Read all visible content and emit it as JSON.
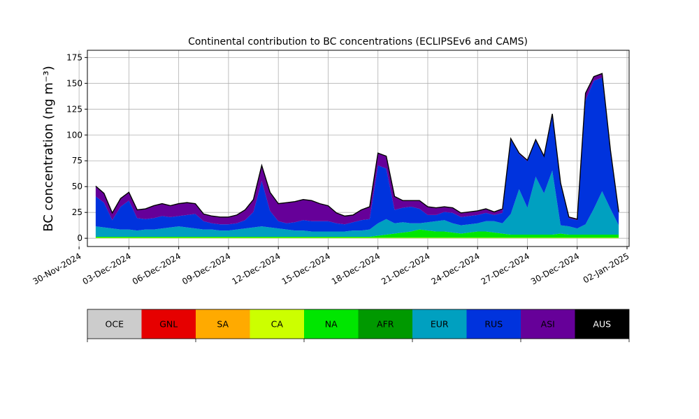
{
  "chart_data": {
    "type": "area",
    "stacked": true,
    "title": "Continental contribution to BC concentrations (ECLIPSEv6 and CAMS)",
    "xlabel": "",
    "ylabel": "BC concentration (ng m⁻³)",
    "xlim": [
      "2024-11-30T12:00",
      "2025-01-02T03:00"
    ],
    "ylim": [
      -8,
      182
    ],
    "grid": true,
    "total_line_color": "#000000",
    "x_ticks": [
      "2024-11-30",
      "2024-12-03",
      "2024-12-06",
      "2024-12-09",
      "2024-12-12",
      "2024-12-15",
      "2024-12-18",
      "2024-12-21",
      "2024-12-24",
      "2024-12-27",
      "2024-12-30",
      "2025-01-02"
    ],
    "x_tick_labels": [
      "30-Nov-2024",
      "03-Dec-2024",
      "06-Dec-2024",
      "09-Dec-2024",
      "12-Dec-2024",
      "15-Dec-2024",
      "18-Dec-2024",
      "21-Dec-2024",
      "24-Dec-2024",
      "27-Dec-2024",
      "30-Dec-2024",
      "02-Jan-2025"
    ],
    "y_ticks": [
      0,
      25,
      50,
      75,
      100,
      125,
      150,
      175
    ],
    "y_tick_labels": [
      "0",
      "25",
      "50",
      "75",
      "100",
      "125",
      "150",
      "175"
    ],
    "x": [
      "2024-12-01",
      "2024-12-01T12:00",
      "2024-12-02",
      "2024-12-02T12:00",
      "2024-12-03",
      "2024-12-03T12:00",
      "2024-12-04",
      "2024-12-04T12:00",
      "2024-12-05",
      "2024-12-05T12:00",
      "2024-12-06",
      "2024-12-06T12:00",
      "2024-12-07",
      "2024-12-07T12:00",
      "2024-12-08",
      "2024-12-08T12:00",
      "2024-12-09",
      "2024-12-09T12:00",
      "2024-12-10",
      "2024-12-10T12:00",
      "2024-12-11",
      "2024-12-11T12:00",
      "2024-12-12",
      "2024-12-12T12:00",
      "2024-12-13",
      "2024-12-13T12:00",
      "2024-12-14",
      "2024-12-14T12:00",
      "2024-12-15",
      "2024-12-15T12:00",
      "2024-12-16",
      "2024-12-16T12:00",
      "2024-12-17",
      "2024-12-17T12:00",
      "2024-12-18",
      "2024-12-18T12:00",
      "2024-12-19",
      "2024-12-19T12:00",
      "2024-12-20",
      "2024-12-20T12:00",
      "2024-12-21",
      "2024-12-21T12:00",
      "2024-12-22",
      "2024-12-22T12:00",
      "2024-12-23",
      "2024-12-23T12:00",
      "2024-12-24",
      "2024-12-24T12:00",
      "2024-12-25",
      "2024-12-25T12:00",
      "2024-12-26",
      "2024-12-26T12:00",
      "2024-12-27",
      "2024-12-27T12:00",
      "2024-12-28",
      "2024-12-28T12:00",
      "2024-12-29",
      "2024-12-29T12:00",
      "2024-12-30",
      "2024-12-30T12:00",
      "2024-12-31",
      "2024-12-31T12:00",
      "2025-01-01",
      "2025-01-01T12:00"
    ],
    "series": [
      {
        "name": "OCE",
        "color": "#cccccc",
        "values": [
          0,
          0,
          0,
          0,
          0,
          0,
          0,
          0,
          0,
          0,
          0,
          0,
          0,
          0,
          0,
          0,
          0,
          0,
          0,
          0,
          0,
          0,
          0,
          0,
          0,
          0,
          0,
          0,
          0,
          0,
          0,
          0,
          0,
          0,
          0,
          0,
          0,
          0,
          0,
          0,
          0,
          0,
          0,
          0,
          0,
          0,
          0,
          0,
          0,
          0,
          0,
          0,
          0,
          0,
          0,
          0,
          0,
          0,
          0,
          0,
          0,
          0,
          0,
          0
        ]
      },
      {
        "name": "GNL",
        "color": "#e60000",
        "values": [
          0,
          0,
          0,
          0,
          0,
          0,
          0,
          0,
          0,
          0,
          0,
          0,
          0,
          0,
          0,
          0,
          0,
          0,
          0,
          0,
          0,
          0,
          0,
          0,
          0,
          0,
          0,
          0,
          0,
          0,
          0,
          0,
          0,
          0,
          0,
          0,
          0,
          0,
          0,
          0,
          0,
          0,
          0,
          0,
          0,
          0,
          0,
          0,
          0,
          0,
          0,
          0,
          0,
          0,
          0,
          0,
          0,
          0,
          0,
          0,
          0,
          0,
          0,
          0
        ]
      },
      {
        "name": "SA",
        "color": "#ffaa00",
        "values": [
          0,
          0,
          0,
          0,
          0,
          0,
          0,
          0,
          0,
          0,
          0,
          0,
          0,
          0,
          0,
          0,
          0,
          0,
          0,
          0,
          0,
          0,
          0,
          0,
          0,
          0,
          0,
          0,
          0,
          0,
          0,
          0,
          0,
          0,
          0,
          0,
          0,
          0,
          0,
          0,
          0,
          0,
          0,
          0,
          0,
          0,
          0,
          0,
          0,
          0,
          0,
          0,
          0,
          0,
          0,
          0,
          0,
          0,
          0,
          0,
          0,
          0,
          0,
          0
        ]
      },
      {
        "name": "CA",
        "color": "#ccff00",
        "values": [
          0.5,
          0.5,
          0.5,
          0.5,
          0.5,
          0.5,
          0.5,
          0.5,
          0.5,
          0.5,
          0.5,
          0.5,
          0.5,
          0.5,
          0.5,
          0.5,
          0.5,
          0.5,
          0.5,
          0.5,
          0.5,
          0.5,
          0.5,
          0.5,
          0.5,
          0.5,
          0.5,
          0.5,
          0.5,
          0.5,
          0.5,
          0.5,
          0.5,
          0.5,
          0.5,
          0.5,
          0.5,
          0.5,
          0.5,
          0.5,
          0.5,
          0.5,
          0.5,
          0.5,
          0.5,
          0.5,
          0.5,
          0.5,
          0.5,
          0.5,
          0.5,
          0.5,
          0.5,
          0.5,
          0.5,
          0.5,
          0.5,
          0.5,
          0.5,
          0.5,
          0.5,
          0.5,
          0.5,
          0.5
        ]
      },
      {
        "name": "NA",
        "color": "#00e600",
        "values": [
          1,
          1,
          1,
          1,
          1,
          1,
          1,
          1,
          1,
          1,
          1,
          1,
          1,
          1,
          1,
          1,
          1,
          1,
          1,
          1,
          1,
          1,
          1,
          1,
          1,
          1,
          1,
          1,
          1,
          1,
          1,
          1,
          1,
          1,
          2,
          3,
          4,
          5,
          6,
          8,
          7,
          6,
          6,
          5,
          4,
          5,
          6,
          6,
          5,
          4,
          3,
          3,
          3,
          3,
          3,
          3,
          4,
          3,
          3,
          3,
          3,
          3,
          3,
          3
        ]
      },
      {
        "name": "AFR",
        "color": "#009900",
        "values": [
          0,
          0,
          0,
          0,
          0,
          0,
          0,
          0,
          0,
          0,
          0,
          0,
          0,
          0,
          0,
          0,
          0,
          0,
          0,
          0,
          0,
          0,
          0,
          0,
          0,
          0,
          0,
          0,
          0,
          0,
          0,
          0,
          0,
          0,
          0,
          0,
          0,
          0,
          0,
          0,
          0,
          0,
          0,
          0,
          0,
          0,
          0,
          0,
          0,
          0,
          0,
          0,
          0,
          0,
          0,
          0,
          0,
          0,
          0,
          0,
          0,
          0,
          0,
          0
        ]
      },
      {
        "name": "EUR",
        "color": "#00a0c0",
        "values": [
          10,
          9,
          8,
          7,
          7,
          6,
          7,
          7,
          8,
          9,
          10,
          9,
          8,
          7,
          7,
          6,
          6,
          7,
          8,
          9,
          10,
          9,
          8,
          7,
          6,
          6,
          5,
          5,
          5,
          5,
          5,
          6,
          6,
          7,
          12,
          15,
          10,
          10,
          8,
          6,
          8,
          10,
          11,
          9,
          8,
          8,
          8,
          10,
          11,
          10,
          20,
          44,
          26,
          56,
          40,
          62,
          8,
          8,
          6,
          10,
          25,
          42,
          25,
          9
        ]
      },
      {
        "name": "RUS",
        "color": "#0033dd",
        "values": [
          29,
          24,
          8,
          22,
          28,
          12,
          10,
          11,
          12,
          10,
          10,
          12,
          14,
          8,
          6,
          6,
          6,
          6,
          8,
          15,
          44,
          16,
          7,
          6,
          8,
          10,
          10,
          10,
          10,
          8,
          7,
          8,
          10,
          10,
          56,
          49,
          13,
          14,
          16,
          14,
          7,
          6,
          8,
          10,
          8,
          8,
          8,
          8,
          6,
          10,
          72,
          34,
          45,
          35,
          35,
          53,
          40,
          8,
          8,
          120,
          124,
          110,
          55,
          12
        ]
      },
      {
        "name": "ASI",
        "color": "#660099",
        "values": [
          10,
          9,
          7,
          8,
          8,
          8,
          10,
          12,
          12,
          11,
          12,
          12,
          10,
          7,
          7,
          7,
          7,
          8,
          10,
          12,
          15,
          18,
          17,
          20,
          20,
          20,
          20,
          17,
          15,
          10,
          8,
          7,
          10,
          12,
          12,
          12,
          13,
          7,
          6,
          8,
          8,
          7,
          5,
          5,
          4,
          4,
          4,
          4,
          3,
          4,
          1,
          1,
          1,
          1,
          1,
          2,
          1,
          1,
          1,
          7,
          4,
          4,
          2,
          1
        ]
      },
      {
        "name": "AUS",
        "color": "#000000",
        "values": [
          0,
          0,
          0,
          0,
          0,
          0,
          0,
          0,
          0,
          0,
          0,
          0,
          0,
          0,
          0,
          0,
          0,
          0,
          0,
          0,
          0,
          0,
          0,
          0,
          0,
          0,
          0,
          0,
          0,
          0,
          0,
          0,
          0,
          0,
          0,
          0,
          0,
          0,
          0,
          0,
          0,
          0,
          0,
          0,
          0,
          0,
          0,
          0,
          0,
          0,
          0,
          0,
          0,
          0,
          0,
          0,
          0,
          0,
          0,
          0,
          0,
          0,
          0,
          0
        ]
      }
    ]
  }
}
